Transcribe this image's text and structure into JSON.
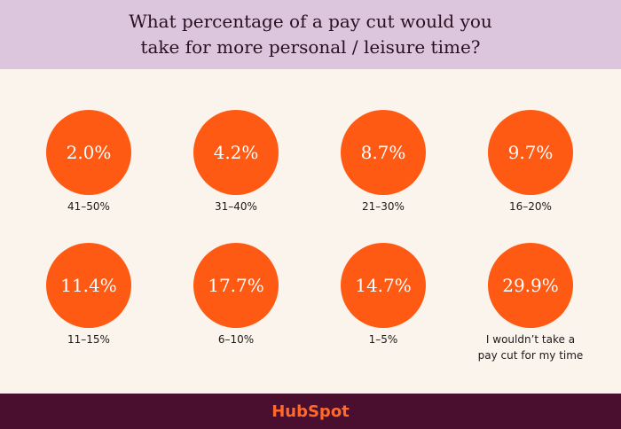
{
  "header": {
    "title": "What percentage of a pay cut would you take for more personal / leisure time?"
  },
  "items": [
    {
      "value": "2.0%",
      "label": "41–50%"
    },
    {
      "value": "4.2%",
      "label": "31–40%"
    },
    {
      "value": "8.7%",
      "label": "21–30%"
    },
    {
      "value": "9.7%",
      "label": "16–20%"
    },
    {
      "value": "11.4%",
      "label": "11–15%"
    },
    {
      "value": "17.7%",
      "label": "6–10%"
    },
    {
      "value": "14.7%",
      "label": "1–5%"
    },
    {
      "value": "29.9%",
      "label": "I wouldn’t take a pay cut for my time"
    }
  ],
  "footer": {
    "logo": "HubSpot"
  }
}
